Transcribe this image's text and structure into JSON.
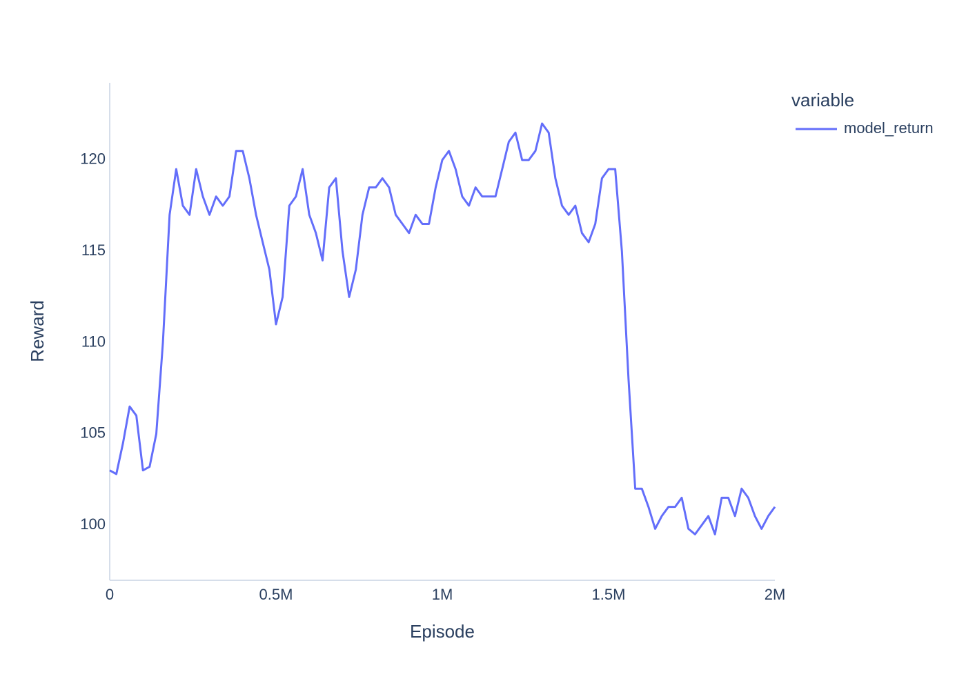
{
  "chart_data": {
    "type": "line",
    "xlabel": "Episode",
    "ylabel": "Reward",
    "legend_title": "variable",
    "legend_position": "top-right",
    "grid": false,
    "xlim": [
      0,
      2000000
    ],
    "ylim": [
      96.98,
      124.23
    ],
    "xticks": [
      0,
      {
        "value": 500000,
        "label": "0.5M"
      },
      {
        "value": 1000000,
        "label": "1M"
      },
      {
        "value": 1500000,
        "label": "1.5M"
      },
      {
        "value": 2000000,
        "label": "2M"
      }
    ],
    "yticks": [
      100,
      105,
      110,
      115,
      120
    ],
    "x": [
      0,
      20000,
      40000,
      60000,
      80000,
      100000,
      120000,
      140000,
      160000,
      180000,
      200000,
      220000,
      240000,
      260000,
      280000,
      300000,
      320000,
      340000,
      360000,
      380000,
      400000,
      420000,
      440000,
      460000,
      480000,
      500000,
      520000,
      540000,
      560000,
      580000,
      600000,
      620000,
      640000,
      660000,
      680000,
      700000,
      720000,
      740000,
      760000,
      780000,
      800000,
      820000,
      840000,
      860000,
      880000,
      900000,
      920000,
      940000,
      960000,
      980000,
      1000000,
      1020000,
      1040000,
      1060000,
      1080000,
      1100000,
      1120000,
      1140000,
      1160000,
      1180000,
      1200000,
      1220000,
      1240000,
      1260000,
      1280000,
      1300000,
      1320000,
      1340000,
      1360000,
      1380000,
      1400000,
      1420000,
      1440000,
      1460000,
      1480000,
      1500000,
      1520000,
      1540000,
      1560000,
      1580000,
      1600000,
      1620000,
      1640000,
      1660000,
      1680000,
      1700000,
      1720000,
      1740000,
      1760000,
      1780000,
      1800000,
      1820000,
      1840000,
      1860000,
      1880000,
      1900000,
      1920000,
      1940000,
      1960000,
      1980000,
      2000000
    ],
    "series": [
      {
        "name": "model_return",
        "color": "#636efa",
        "values": [
          103,
          102.8,
          104.5,
          106.5,
          106,
          103,
          103.2,
          105,
          110,
          117,
          119.5,
          117.5,
          117,
          119.5,
          118,
          117,
          118,
          117.5,
          118,
          120.5,
          120.5,
          119,
          117,
          115.5,
          114,
          111,
          112.5,
          117.5,
          118,
          119.5,
          117,
          116,
          114.5,
          118.5,
          119,
          115,
          112.5,
          114,
          117,
          118.5,
          118.5,
          119,
          118.5,
          117,
          116.5,
          116,
          117,
          116.5,
          116.5,
          118.5,
          120,
          120.5,
          119.5,
          118,
          117.5,
          118.5,
          118,
          118,
          118,
          119.5,
          121,
          121.5,
          120,
          120,
          120.5,
          122,
          121.5,
          119,
          117.5,
          117,
          117.5,
          116,
          115.5,
          116.5,
          119,
          119.5,
          119.5,
          115,
          108,
          102,
          102,
          101,
          99.8,
          100.5,
          101,
          101,
          101.5,
          99.8,
          99.5,
          100,
          100.5,
          99.5,
          101.5,
          101.5,
          100.5,
          102,
          101.5,
          100.5,
          99.8,
          100.5,
          101
        ]
      }
    ]
  }
}
